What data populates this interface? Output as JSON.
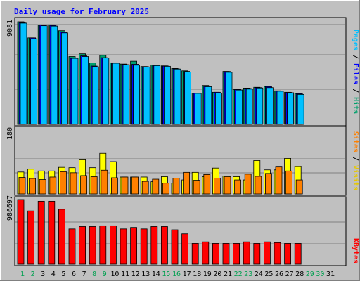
{
  "chart_data": [
    {
      "type": "bar",
      "title": "Daily usage for February 2025",
      "categories": [
        "1",
        "2",
        "3",
        "4",
        "5",
        "6",
        "7",
        "8",
        "9",
        "10",
        "11",
        "12",
        "13",
        "14",
        "15",
        "16",
        "17",
        "18",
        "19",
        "20",
        "21",
        "22",
        "23",
        "24",
        "25",
        "26",
        "27",
        "28",
        "29",
        "30",
        "31"
      ],
      "weekend_days": [
        "1",
        "2",
        "8",
        "9",
        "15",
        "16",
        "22",
        "23",
        "29",
        "30"
      ],
      "ytick": "9081",
      "ylim": [
        0,
        9081
      ],
      "legend": [
        "Pages",
        "Files",
        "Hits"
      ],
      "legend_colors": [
        "#00c0ff",
        "#0000ff",
        "#00a06b"
      ],
      "grid": true,
      "series": [
        {
          "name": "Hits",
          "color": "#00a070",
          "values": [
            9081,
            7660,
            8780,
            8810,
            8290,
            6000,
            6240,
            5440,
            6110,
            5450,
            5340,
            5590,
            5120,
            5250,
            5180,
            4950,
            4740,
            2770,
            3440,
            2840,
            4690,
            3090,
            3210,
            3280,
            3360,
            2970,
            2840,
            2740,
            0,
            0,
            0
          ]
        },
        {
          "name": "Files",
          "color": "#0000ff",
          "values": [
            9000,
            7660,
            8780,
            8760,
            8170,
            5850,
            6060,
            5160,
            5900,
            5420,
            5290,
            5320,
            5110,
            5220,
            5160,
            4920,
            4690,
            2760,
            3350,
            2840,
            4680,
            3080,
            3180,
            3250,
            3340,
            2950,
            2830,
            2710,
            0,
            0,
            0
          ]
        },
        {
          "name": "Pages",
          "color": "#00c0ff",
          "values": [
            8960,
            7580,
            8730,
            8700,
            8100,
            5840,
            6000,
            5100,
            5870,
            5410,
            5280,
            5240,
            5080,
            5200,
            5140,
            4900,
            4640,
            2740,
            3330,
            2770,
            4610,
            3040,
            3120,
            3220,
            3250,
            2930,
            2800,
            2650,
            0,
            0,
            0
          ]
        }
      ]
    },
    {
      "type": "bar",
      "ytick": "180",
      "ylim": [
        0,
        180
      ],
      "legend": [
        "Sites",
        "Visits"
      ],
      "legend_colors": [
        "#ff8000",
        "#ffff00"
      ],
      "grid": true,
      "series": [
        {
          "name": "Visits",
          "color": "#ffff00",
          "values": [
            61,
            69,
            64,
            64,
            74,
            73,
            95,
            73,
            113,
            90,
            47,
            47,
            47,
            34,
            48,
            30,
            39,
            60,
            48,
            72,
            50,
            48,
            39,
            93,
            67,
            67,
            99,
            76,
            0,
            0,
            0
          ]
        },
        {
          "name": "Sites",
          "color": "#ff8000",
          "values": [
            46,
            43,
            40,
            47,
            62,
            59,
            51,
            48,
            66,
            45,
            47,
            47,
            35,
            41,
            30,
            44,
            60,
            38,
            54,
            44,
            48,
            39,
            55,
            49,
            57,
            75,
            64,
            39,
            0,
            0,
            0
          ]
        }
      ]
    },
    {
      "type": "bar",
      "ytick": "986697",
      "ylim": [
        0,
        986697
      ],
      "legend": [
        "KBytes"
      ],
      "legend_colors": [
        "#ff0000"
      ],
      "grid": true,
      "series": [
        {
          "name": "KBytes",
          "color": "#ff0000",
          "values": [
            986697,
            813000,
            961000,
            961000,
            838000,
            538000,
            574000,
            574000,
            586000,
            586000,
            538000,
            561000,
            538000,
            574000,
            574000,
            525000,
            464000,
            317000,
            341000,
            317000,
            317000,
            317000,
            341000,
            317000,
            341000,
            329000,
            317000,
            317000,
            0,
            0,
            0
          ]
        }
      ]
    }
  ]
}
